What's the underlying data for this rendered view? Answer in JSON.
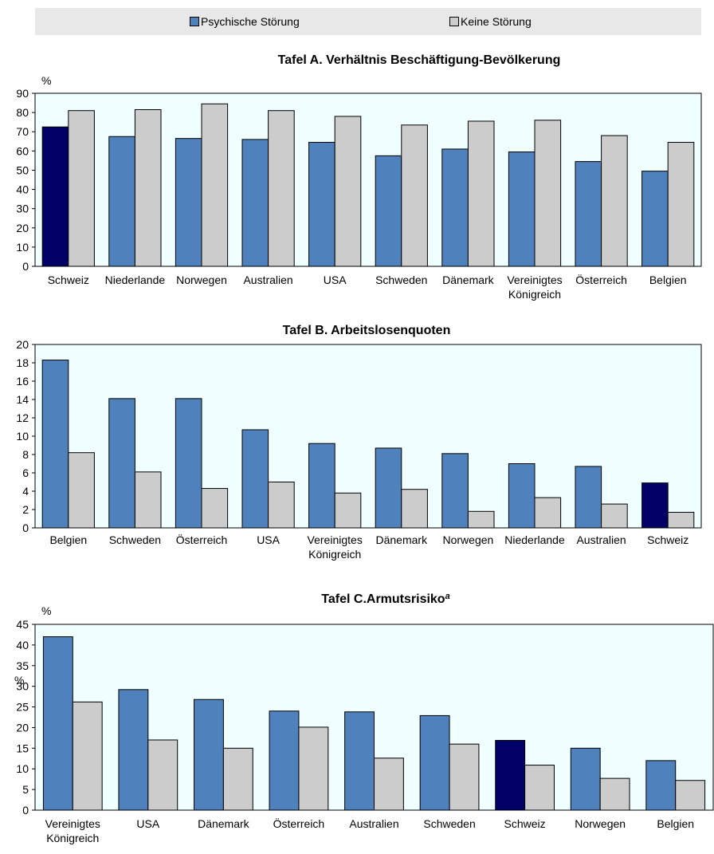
{
  "colors": {
    "psychic": "#4f81bd",
    "psychic_highlight": "#000066",
    "none": "#cccccc",
    "plot_bg": "#f0ffff"
  },
  "legend": {
    "items": [
      {
        "label": "Psychische Störung"
      },
      {
        "label": "Keine Störung"
      }
    ]
  },
  "chart_data": [
    {
      "type": "bar",
      "title": "Tafel A. Verhältnis Beschäftigung-Bevölkerung",
      "ylabel": "%",
      "ylim": [
        0,
        90
      ],
      "ticks": [
        "0",
        "10",
        "20",
        "30",
        "40",
        "50",
        "60",
        "70",
        "80",
        "90"
      ],
      "categories": [
        [
          "Schweiz"
        ],
        [
          "Niederlande"
        ],
        [
          "Norwegen"
        ],
        [
          "Australien"
        ],
        [
          "USA"
        ],
        [
          "Schweden"
        ],
        [
          "Dänemark"
        ],
        [
          "Vereinigtes",
          "Königreich"
        ],
        [
          "Österreich"
        ],
        [
          "Belgien"
        ]
      ],
      "highlight_index": 0,
      "series": [
        {
          "name": "Psychische Störung",
          "values": [
            72.5,
            67.5,
            66.5,
            66,
            64.5,
            57.5,
            61,
            59.5,
            54.5,
            49.5
          ]
        },
        {
          "name": "Keine Störung",
          "values": [
            81,
            81.5,
            84.5,
            81,
            78,
            73.5,
            75.5,
            76,
            68,
            64.5
          ]
        }
      ]
    },
    {
      "type": "bar",
      "title": "Tafel B. Arbeitslosenquoten",
      "ylabel": "",
      "ylim": [
        0,
        20
      ],
      "ticks": [
        "0",
        "2",
        "4",
        "6",
        "8",
        "10",
        "12",
        "14",
        "16",
        "18",
        "20"
      ],
      "categories": [
        [
          "Belgien"
        ],
        [
          "Schweden"
        ],
        [
          "Österreich"
        ],
        [
          "USA"
        ],
        [
          "Vereinigtes",
          "Königreich"
        ],
        [
          "Dänemark"
        ],
        [
          "Norwegen"
        ],
        [
          "Niederlande"
        ],
        [
          "Australien"
        ],
        [
          "Schweiz"
        ]
      ],
      "highlight_index": 9,
      "series": [
        {
          "name": "Psychische Störung",
          "values": [
            18.3,
            14.1,
            14.1,
            10.7,
            9.2,
            8.7,
            8.1,
            7.0,
            6.7,
            4.9
          ]
        },
        {
          "name": "Keine Störung",
          "values": [
            8.2,
            6.1,
            4.3,
            5.0,
            3.8,
            4.2,
            1.8,
            3.3,
            2.6,
            1.7
          ]
        }
      ]
    },
    {
      "type": "bar",
      "title": "Tafel C.Armutsrisiko",
      "title_superscript": "a",
      "ylabel": "%",
      "ylabel_secondary": "%",
      "ylim": [
        0,
        45
      ],
      "ticks": [
        "0",
        "5",
        "10",
        "15",
        "20",
        "25",
        "30",
        "35",
        "40",
        "45"
      ],
      "categories": [
        [
          "Vereinigtes",
          "Königreich"
        ],
        [
          "USA"
        ],
        [
          "Dänemark"
        ],
        [
          "Österreich"
        ],
        [
          "Australien"
        ],
        [
          "Schweden"
        ],
        [
          "Schweiz"
        ],
        [
          "Norwegen"
        ],
        [
          "Belgien"
        ]
      ],
      "highlight_index": 6,
      "series": [
        {
          "name": "Psychische Störung",
          "values": [
            42,
            29.2,
            26.8,
            24,
            23.8,
            22.9,
            16.9,
            15,
            12
          ]
        },
        {
          "name": "Keine Störung",
          "values": [
            26.2,
            17,
            15,
            20.1,
            12.6,
            16,
            10.9,
            7.7,
            7.2
          ]
        }
      ]
    }
  ]
}
